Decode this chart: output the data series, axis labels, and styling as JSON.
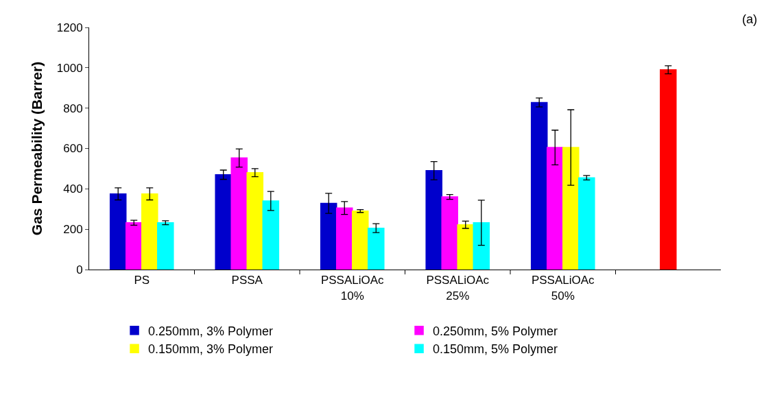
{
  "chart_data": {
    "type": "bar",
    "ylabel": "Gas Permeability (Barrer)",
    "categories": [
      "PS",
      "PSSA",
      "PSSALiOAc\n10%",
      "PSSALiOAc\n25%",
      "PSSALiOAc\n50%",
      null
    ],
    "series": [
      {
        "name": "0.250mm, 3% Polymer",
        "color": "#0000cc",
        "values": [
          375,
          470,
          328,
          490,
          828,
          null
        ],
        "errors": [
          30,
          23,
          50,
          45,
          22,
          null
        ]
      },
      {
        "name": "0.250mm, 5% Polymer",
        "color": "#ff00ff",
        "values": [
          232,
          553,
          305,
          360,
          605,
          null
        ],
        "errors": [
          12,
          45,
          32,
          12,
          86,
          null
        ]
      },
      {
        "color": "#ff0000",
        "values": [
          null,
          null,
          null,
          null,
          null,
          990
        ],
        "errors": [
          null,
          null,
          null,
          null,
          null,
          20
        ]
      },
      {
        "name": "0.150mm, 3% Polymer",
        "color": "#ffff00",
        "values": [
          375,
          480,
          290,
          222,
          605,
          null
        ],
        "errors": [
          30,
          20,
          7,
          18,
          187,
          null
        ]
      },
      {
        "name": "0.150mm, 5% Polymer",
        "color": "#00ffff",
        "values": [
          232,
          340,
          205,
          232,
          455,
          null
        ],
        "errors": [
          10,
          47,
          22,
          112,
          11,
          null
        ]
      }
    ],
    "ylim": [
      0,
      1200
    ],
    "yticks": [
      0,
      200,
      400,
      600,
      800,
      1000,
      1200
    ],
    "grid": false,
    "legend": "bottom",
    "annotations": [
      "(a)"
    ]
  }
}
